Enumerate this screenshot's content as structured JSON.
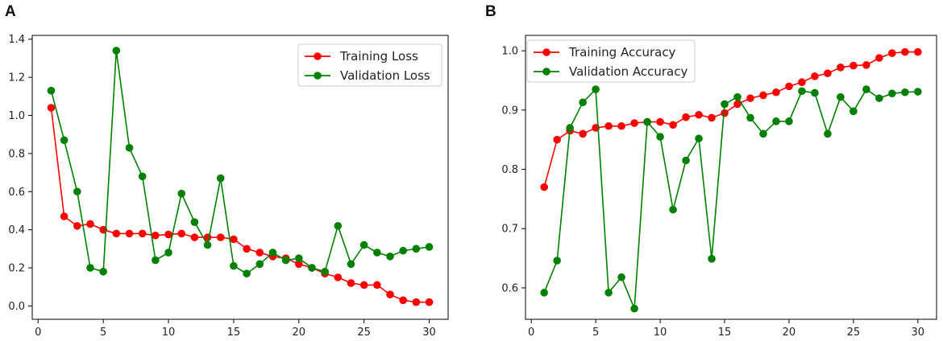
{
  "chart_data": [
    {
      "panel_label": "A",
      "type": "line",
      "title": "",
      "xlabel": "",
      "ylabel": "",
      "xlim": [
        -0.45,
        31.45
      ],
      "ylim": [
        -0.07,
        1.42
      ],
      "xticks": [
        0,
        5,
        10,
        15,
        20,
        25,
        30
      ],
      "yticks": [
        0.0,
        0.2,
        0.4,
        0.6,
        0.8,
        1.0,
        1.2,
        1.4
      ],
      "ytick_labels": [
        "0.0",
        "0.2",
        "0.4",
        "0.6",
        "0.8",
        "1.0",
        "1.2",
        "1.4"
      ],
      "grid": false,
      "legend_position": "top-right",
      "x": [
        1,
        2,
        3,
        4,
        5,
        6,
        7,
        8,
        9,
        10,
        11,
        12,
        13,
        14,
        15,
        16,
        17,
        18,
        19,
        20,
        21,
        22,
        23,
        24,
        25,
        26,
        27,
        28,
        29,
        30
      ],
      "series": [
        {
          "name": "Training Loss",
          "color": "#ff0000",
          "values": [
            1.04,
            0.47,
            0.42,
            0.43,
            0.4,
            0.38,
            0.38,
            0.38,
            0.37,
            0.375,
            0.38,
            0.36,
            0.36,
            0.36,
            0.35,
            0.3,
            0.28,
            0.26,
            0.25,
            0.22,
            0.2,
            0.17,
            0.15,
            0.12,
            0.11,
            0.11,
            0.06,
            0.03,
            0.02,
            0.02
          ]
        },
        {
          "name": "Validation Loss",
          "color": "#008000",
          "values": [
            1.13,
            0.87,
            0.6,
            0.2,
            0.18,
            1.34,
            0.83,
            0.68,
            0.24,
            0.28,
            0.59,
            0.44,
            0.32,
            0.67,
            0.21,
            0.17,
            0.22,
            0.28,
            0.24,
            0.25,
            0.2,
            0.18,
            0.42,
            0.22,
            0.32,
            0.28,
            0.26,
            0.29,
            0.3,
            0.31
          ]
        }
      ]
    },
    {
      "panel_label": "B",
      "type": "line",
      "title": "",
      "xlabel": "",
      "ylabel": "",
      "xlim": [
        -0.45,
        31.45
      ],
      "ylim": [
        0.547,
        1.026
      ],
      "xticks": [
        0,
        5,
        10,
        15,
        20,
        25,
        30
      ],
      "yticks": [
        0.6,
        0.7,
        0.8,
        0.9,
        1.0
      ],
      "ytick_labels": [
        "0.6",
        "0.7",
        "0.8",
        "0.9",
        "1.0"
      ],
      "grid": false,
      "legend_position": "top-left",
      "x": [
        1,
        2,
        3,
        4,
        5,
        6,
        7,
        8,
        9,
        10,
        11,
        12,
        13,
        14,
        15,
        16,
        17,
        18,
        19,
        20,
        21,
        22,
        23,
        24,
        25,
        26,
        27,
        28,
        29,
        30
      ],
      "series": [
        {
          "name": "Training Accuracy",
          "color": "#ff0000",
          "values": [
            0.77,
            0.85,
            0.865,
            0.86,
            0.87,
            0.873,
            0.873,
            0.878,
            0.88,
            0.88,
            0.875,
            0.888,
            0.892,
            0.887,
            0.895,
            0.91,
            0.92,
            0.925,
            0.93,
            0.94,
            0.947,
            0.957,
            0.962,
            0.972,
            0.975,
            0.976,
            0.988,
            0.996,
            0.998,
            0.998
          ]
        },
        {
          "name": "Validation Accuracy",
          "color": "#008000",
          "values": [
            0.592,
            0.646,
            0.87,
            0.913,
            0.935,
            0.592,
            0.618,
            0.565,
            0.88,
            0.855,
            0.732,
            0.815,
            0.852,
            0.649,
            0.91,
            0.922,
            0.887,
            0.86,
            0.881,
            0.881,
            0.932,
            0.929,
            0.86,
            0.922,
            0.898,
            0.935,
            0.92,
            0.928,
            0.93,
            0.931
          ]
        }
      ]
    }
  ]
}
